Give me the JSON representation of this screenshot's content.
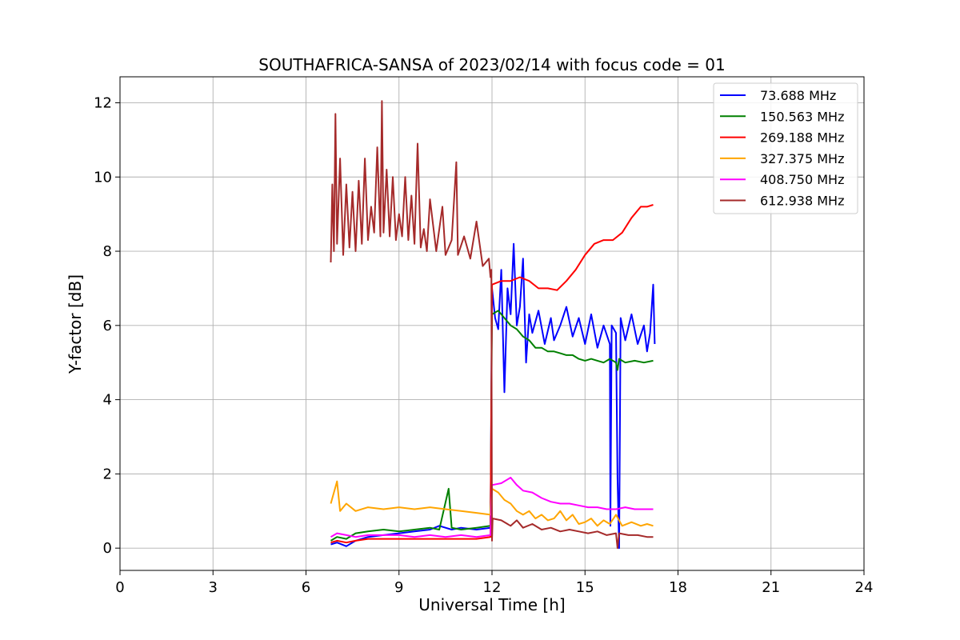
{
  "chart_data": {
    "type": "line",
    "title": "SOUTHAFRICA-SANSA of 2023/02/14 with focus code = 01",
    "xlabel": "Universal Time [h]",
    "ylabel": "Y-factor [dB]",
    "xlim": [
      0,
      24
    ],
    "ylim": [
      -0.6,
      12.7
    ],
    "xticks": [
      0,
      3,
      6,
      9,
      12,
      15,
      18,
      21,
      24
    ],
    "yticks": [
      0,
      2,
      4,
      6,
      8,
      10,
      12
    ],
    "grid": true,
    "legend_position": "top-right",
    "series": [
      {
        "name": " 73.688 MHz",
        "color": "#0000ff",
        "points": [
          [
            6.8,
            0.1
          ],
          [
            7.0,
            0.15
          ],
          [
            7.3,
            0.05
          ],
          [
            7.6,
            0.2
          ],
          [
            8.0,
            0.3
          ],
          [
            8.5,
            0.35
          ],
          [
            9.0,
            0.4
          ],
          [
            9.5,
            0.45
          ],
          [
            10.0,
            0.5
          ],
          [
            10.3,
            0.6
          ],
          [
            10.7,
            0.5
          ],
          [
            11.0,
            0.55
          ],
          [
            11.5,
            0.5
          ],
          [
            11.95,
            0.55
          ],
          [
            12.0,
            7.0
          ],
          [
            12.1,
            6.2
          ],
          [
            12.2,
            5.9
          ],
          [
            12.3,
            7.5
          ],
          [
            12.4,
            4.2
          ],
          [
            12.5,
            7.0
          ],
          [
            12.6,
            6.3
          ],
          [
            12.7,
            8.2
          ],
          [
            12.8,
            6.0
          ],
          [
            12.9,
            6.5
          ],
          [
            13.0,
            7.8
          ],
          [
            13.1,
            5.0
          ],
          [
            13.2,
            6.3
          ],
          [
            13.3,
            5.8
          ],
          [
            13.5,
            6.4
          ],
          [
            13.7,
            5.5
          ],
          [
            13.9,
            6.2
          ],
          [
            14.0,
            5.6
          ],
          [
            14.2,
            6.0
          ],
          [
            14.4,
            6.5
          ],
          [
            14.6,
            5.7
          ],
          [
            14.8,
            6.2
          ],
          [
            15.0,
            5.5
          ],
          [
            15.2,
            6.3
          ],
          [
            15.4,
            5.4
          ],
          [
            15.6,
            6.0
          ],
          [
            15.8,
            5.5
          ],
          [
            15.82,
            0.6
          ],
          [
            15.86,
            6.0
          ],
          [
            16.0,
            5.8
          ],
          [
            16.05,
            1.9
          ],
          [
            16.1,
            0.0
          ],
          [
            16.15,
            6.2
          ],
          [
            16.3,
            5.6
          ],
          [
            16.5,
            6.3
          ],
          [
            16.7,
            5.5
          ],
          [
            16.9,
            6.0
          ],
          [
            17.0,
            5.3
          ],
          [
            17.1,
            5.8
          ],
          [
            17.2,
            7.1
          ],
          [
            17.25,
            5.5
          ]
        ]
      },
      {
        "name": "150.563 MHz",
        "color": "#008000",
        "points": [
          [
            6.8,
            0.2
          ],
          [
            7.0,
            0.3
          ],
          [
            7.3,
            0.25
          ],
          [
            7.6,
            0.4
          ],
          [
            8.0,
            0.45
          ],
          [
            8.5,
            0.5
          ],
          [
            9.0,
            0.45
          ],
          [
            9.5,
            0.5
          ],
          [
            10.0,
            0.55
          ],
          [
            10.3,
            0.5
          ],
          [
            10.6,
            1.6
          ],
          [
            10.7,
            0.55
          ],
          [
            11.0,
            0.5
          ],
          [
            11.5,
            0.55
          ],
          [
            11.95,
            0.6
          ],
          [
            12.0,
            6.3
          ],
          [
            12.2,
            6.4
          ],
          [
            12.4,
            6.2
          ],
          [
            12.6,
            6.0
          ],
          [
            12.8,
            5.9
          ],
          [
            13.0,
            5.7
          ],
          [
            13.2,
            5.6
          ],
          [
            13.4,
            5.4
          ],
          [
            13.6,
            5.4
          ],
          [
            13.8,
            5.3
          ],
          [
            14.0,
            5.3
          ],
          [
            14.2,
            5.25
          ],
          [
            14.4,
            5.2
          ],
          [
            14.6,
            5.2
          ],
          [
            14.8,
            5.1
          ],
          [
            15.0,
            5.05
          ],
          [
            15.2,
            5.1
          ],
          [
            15.4,
            5.05
          ],
          [
            15.6,
            5.0
          ],
          [
            15.8,
            5.1
          ],
          [
            16.0,
            5.0
          ],
          [
            16.05,
            4.8
          ],
          [
            16.1,
            5.1
          ],
          [
            16.3,
            5.0
          ],
          [
            16.6,
            5.05
          ],
          [
            16.9,
            5.0
          ],
          [
            17.2,
            5.05
          ]
        ]
      },
      {
        "name": "269.188 MHz",
        "color": "#ff0000",
        "points": [
          [
            6.8,
            0.15
          ],
          [
            7.0,
            0.2
          ],
          [
            7.3,
            0.15
          ],
          [
            7.6,
            0.2
          ],
          [
            8.0,
            0.25
          ],
          [
            8.5,
            0.25
          ],
          [
            9.0,
            0.25
          ],
          [
            9.5,
            0.25
          ],
          [
            10.0,
            0.25
          ],
          [
            10.5,
            0.25
          ],
          [
            11.0,
            0.25
          ],
          [
            11.5,
            0.25
          ],
          [
            11.95,
            0.3
          ],
          [
            12.0,
            7.1
          ],
          [
            12.3,
            7.2
          ],
          [
            12.6,
            7.2
          ],
          [
            12.9,
            7.3
          ],
          [
            13.2,
            7.2
          ],
          [
            13.5,
            7.0
          ],
          [
            13.8,
            7.0
          ],
          [
            14.1,
            6.95
          ],
          [
            14.4,
            7.2
          ],
          [
            14.7,
            7.5
          ],
          [
            15.0,
            7.9
          ],
          [
            15.3,
            8.2
          ],
          [
            15.6,
            8.3
          ],
          [
            15.9,
            8.3
          ],
          [
            16.2,
            8.5
          ],
          [
            16.5,
            8.9
          ],
          [
            16.8,
            9.2
          ],
          [
            17.0,
            9.2
          ],
          [
            17.2,
            9.25
          ]
        ]
      },
      {
        "name": "327.375 MHz",
        "color": "#ffa500",
        "points": [
          [
            6.8,
            1.2
          ],
          [
            7.0,
            1.8
          ],
          [
            7.1,
            1.0
          ],
          [
            7.3,
            1.2
          ],
          [
            7.6,
            1.0
          ],
          [
            8.0,
            1.1
          ],
          [
            8.5,
            1.05
          ],
          [
            9.0,
            1.1
          ],
          [
            9.5,
            1.05
          ],
          [
            10.0,
            1.1
          ],
          [
            10.5,
            1.05
          ],
          [
            11.0,
            1.0
          ],
          [
            11.5,
            0.95
          ],
          [
            11.95,
            0.9
          ],
          [
            12.0,
            1.6
          ],
          [
            12.2,
            1.5
          ],
          [
            12.4,
            1.3
          ],
          [
            12.6,
            1.2
          ],
          [
            12.8,
            1.0
          ],
          [
            13.0,
            0.9
          ],
          [
            13.2,
            1.0
          ],
          [
            13.4,
            0.8
          ],
          [
            13.6,
            0.9
          ],
          [
            13.8,
            0.75
          ],
          [
            14.0,
            0.8
          ],
          [
            14.2,
            1.0
          ],
          [
            14.4,
            0.75
          ],
          [
            14.6,
            0.9
          ],
          [
            14.8,
            0.65
          ],
          [
            15.0,
            0.7
          ],
          [
            15.2,
            0.8
          ],
          [
            15.4,
            0.6
          ],
          [
            15.6,
            0.75
          ],
          [
            15.8,
            0.65
          ],
          [
            16.0,
            0.9
          ],
          [
            16.2,
            0.6
          ],
          [
            16.5,
            0.7
          ],
          [
            16.8,
            0.6
          ],
          [
            17.0,
            0.65
          ],
          [
            17.2,
            0.6
          ]
        ]
      },
      {
        "name": "408.750 MHz",
        "color": "#ff00ff",
        "points": [
          [
            6.8,
            0.3
          ],
          [
            7.0,
            0.4
          ],
          [
            7.3,
            0.35
          ],
          [
            7.6,
            0.3
          ],
          [
            8.0,
            0.35
          ],
          [
            8.5,
            0.35
          ],
          [
            9.0,
            0.35
          ],
          [
            9.5,
            0.3
          ],
          [
            10.0,
            0.35
          ],
          [
            10.5,
            0.3
          ],
          [
            11.0,
            0.35
          ],
          [
            11.5,
            0.3
          ],
          [
            11.95,
            0.35
          ],
          [
            12.0,
            1.7
          ],
          [
            12.3,
            1.75
          ],
          [
            12.6,
            1.9
          ],
          [
            12.8,
            1.7
          ],
          [
            13.0,
            1.55
          ],
          [
            13.3,
            1.5
          ],
          [
            13.6,
            1.35
          ],
          [
            13.9,
            1.25
          ],
          [
            14.2,
            1.2
          ],
          [
            14.5,
            1.2
          ],
          [
            14.8,
            1.15
          ],
          [
            15.1,
            1.1
          ],
          [
            15.4,
            1.1
          ],
          [
            15.7,
            1.05
          ],
          [
            16.0,
            1.05
          ],
          [
            16.3,
            1.1
          ],
          [
            16.6,
            1.05
          ],
          [
            16.9,
            1.05
          ],
          [
            17.2,
            1.05
          ]
        ]
      },
      {
        "name": "612.938 MHz",
        "color": "#a52a2a",
        "points": [
          [
            6.8,
            7.7
          ],
          [
            6.85,
            9.8
          ],
          [
            6.9,
            8.0
          ],
          [
            6.95,
            11.7
          ],
          [
            7.0,
            8.2
          ],
          [
            7.1,
            10.5
          ],
          [
            7.2,
            7.9
          ],
          [
            7.3,
            9.8
          ],
          [
            7.4,
            8.1
          ],
          [
            7.5,
            9.6
          ],
          [
            7.6,
            8.0
          ],
          [
            7.7,
            9.9
          ],
          [
            7.8,
            8.2
          ],
          [
            7.9,
            10.5
          ],
          [
            8.0,
            8.3
          ],
          [
            8.1,
            9.2
          ],
          [
            8.2,
            8.5
          ],
          [
            8.3,
            10.8
          ],
          [
            8.4,
            8.4
          ],
          [
            8.45,
            12.05
          ],
          [
            8.5,
            8.5
          ],
          [
            8.6,
            10.2
          ],
          [
            8.7,
            8.4
          ],
          [
            8.8,
            10.0
          ],
          [
            8.9,
            8.3
          ],
          [
            9.0,
            9.0
          ],
          [
            9.1,
            8.4
          ],
          [
            9.2,
            10.0
          ],
          [
            9.3,
            8.3
          ],
          [
            9.4,
            9.5
          ],
          [
            9.5,
            8.2
          ],
          [
            9.6,
            10.9
          ],
          [
            9.7,
            8.1
          ],
          [
            9.8,
            8.6
          ],
          [
            9.9,
            8.0
          ],
          [
            10.0,
            9.4
          ],
          [
            10.2,
            8.0
          ],
          [
            10.4,
            9.2
          ],
          [
            10.5,
            7.9
          ],
          [
            10.7,
            8.3
          ],
          [
            10.85,
            10.4
          ],
          [
            10.9,
            7.9
          ],
          [
            11.1,
            8.4
          ],
          [
            11.3,
            7.8
          ],
          [
            11.5,
            8.8
          ],
          [
            11.7,
            7.6
          ],
          [
            11.9,
            7.8
          ],
          [
            11.95,
            7.3
          ],
          [
            11.98,
            7.5
          ],
          [
            12.0,
            0.2
          ],
          [
            12.02,
            0.8
          ],
          [
            12.3,
            0.75
          ],
          [
            12.6,
            0.6
          ],
          [
            12.8,
            0.75
          ],
          [
            13.0,
            0.55
          ],
          [
            13.3,
            0.65
          ],
          [
            13.6,
            0.5
          ],
          [
            13.9,
            0.55
          ],
          [
            14.2,
            0.45
          ],
          [
            14.5,
            0.5
          ],
          [
            14.8,
            0.45
          ],
          [
            15.1,
            0.4
          ],
          [
            15.4,
            0.45
          ],
          [
            15.7,
            0.35
          ],
          [
            16.0,
            0.4
          ],
          [
            16.05,
            0.0
          ],
          [
            16.1,
            0.4
          ],
          [
            16.4,
            0.35
          ],
          [
            16.7,
            0.35
          ],
          [
            17.0,
            0.3
          ],
          [
            17.2,
            0.3
          ]
        ]
      }
    ]
  }
}
